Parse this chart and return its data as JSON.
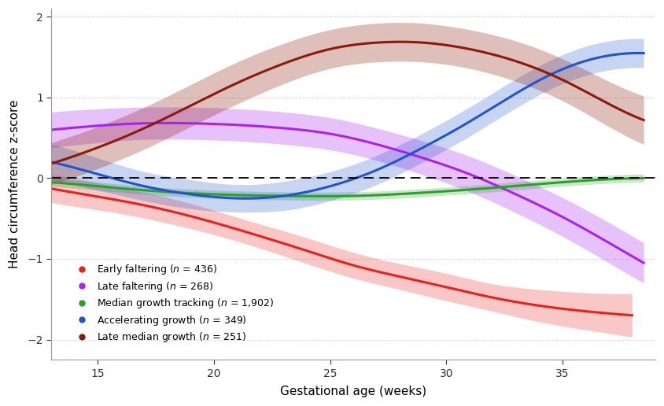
{
  "title": "",
  "xlabel": "Gestational age (weeks)",
  "ylabel": "Head circumference z-score",
  "xlim": [
    13,
    39
  ],
  "ylim": [
    -2.25,
    2.1
  ],
  "xticks": [
    15,
    20,
    25,
    30,
    35
  ],
  "yticks": [
    -2,
    -1,
    0,
    1,
    2
  ],
  "background_color": "#ffffff",
  "grid_color": "#bbbbbb",
  "series": [
    {
      "name": "Early faltering",
      "n": 436,
      "color": "#e8211d",
      "ci_alpha": 0.25,
      "x": [
        13,
        14,
        16,
        18,
        20,
        22,
        24,
        26,
        28,
        30,
        32,
        34,
        36,
        38
      ],
      "y": [
        -0.13,
        -0.18,
        -0.28,
        -0.4,
        -0.55,
        -0.72,
        -0.9,
        -1.08,
        -1.22,
        -1.35,
        -1.48,
        -1.58,
        -1.65,
        -1.7
      ],
      "ci_lower": [
        -0.3,
        -0.35,
        -0.44,
        -0.56,
        -0.7,
        -0.87,
        -1.06,
        -1.24,
        -1.38,
        -1.52,
        -1.65,
        -1.78,
        -1.88,
        -1.97
      ],
      "ci_upper": [
        0.04,
        0.0,
        -0.12,
        -0.24,
        -0.4,
        -0.57,
        -0.74,
        -0.92,
        -1.06,
        -1.18,
        -1.31,
        -1.38,
        -1.42,
        -1.43
      ]
    },
    {
      "name": "Late faltering",
      "n": 268,
      "color": "#aa22ee",
      "ci_alpha": 0.28,
      "x": [
        13,
        15,
        17,
        19,
        21,
        23,
        25,
        27,
        29,
        31,
        33,
        35,
        37,
        38.5
      ],
      "y": [
        0.6,
        0.65,
        0.68,
        0.68,
        0.66,
        0.62,
        0.55,
        0.42,
        0.25,
        0.05,
        -0.2,
        -0.48,
        -0.8,
        -1.05
      ],
      "ci_lower": [
        0.38,
        0.44,
        0.48,
        0.48,
        0.46,
        0.42,
        0.35,
        0.22,
        0.04,
        -0.17,
        -0.43,
        -0.72,
        -1.05,
        -1.3
      ],
      "ci_upper": [
        0.82,
        0.86,
        0.88,
        0.88,
        0.86,
        0.82,
        0.75,
        0.62,
        0.46,
        0.27,
        0.03,
        -0.24,
        -0.55,
        -0.8
      ]
    },
    {
      "name": "Median growth tracking",
      "n": 1902,
      "color": "#2ca02c",
      "ci_alpha": 0.25,
      "x": [
        13,
        15,
        17,
        20,
        23,
        26,
        29,
        32,
        35,
        38.5
      ],
      "y": [
        -0.05,
        -0.1,
        -0.15,
        -0.2,
        -0.22,
        -0.22,
        -0.18,
        -0.12,
        -0.05,
        0.0
      ],
      "ci_lower": [
        -0.1,
        -0.15,
        -0.2,
        -0.25,
        -0.27,
        -0.27,
        -0.23,
        -0.17,
        -0.1,
        -0.05
      ],
      "ci_upper": [
        0.0,
        -0.05,
        -0.1,
        -0.15,
        -0.17,
        -0.17,
        -0.13,
        -0.07,
        0.0,
        0.05
      ]
    },
    {
      "name": "Accelerating growth",
      "n": 349,
      "color": "#2255cc",
      "ci_alpha": 0.25,
      "x": [
        13,
        15,
        17,
        19,
        21,
        23,
        25,
        27,
        29,
        31,
        33,
        35,
        37,
        38.5
      ],
      "y": [
        0.2,
        0.05,
        -0.1,
        -0.2,
        -0.25,
        -0.22,
        -0.1,
        0.1,
        0.38,
        0.7,
        1.05,
        1.35,
        1.52,
        1.55
      ],
      "ci_lower": [
        -0.02,
        -0.15,
        -0.28,
        -0.38,
        -0.42,
        -0.4,
        -0.28,
        -0.08,
        0.2,
        0.52,
        0.87,
        1.17,
        1.34,
        1.37
      ],
      "ci_upper": [
        0.42,
        0.25,
        0.08,
        -0.02,
        -0.08,
        -0.04,
        0.08,
        0.28,
        0.56,
        0.88,
        1.23,
        1.53,
        1.7,
        1.73
      ]
    },
    {
      "name": "Late median growth",
      "n": 251,
      "color": "#8b1a0a",
      "ci_alpha": 0.28,
      "x": [
        13,
        15,
        17,
        19,
        21,
        23,
        25,
        27,
        29,
        31,
        33,
        35,
        37,
        38.5
      ],
      "y": [
        0.18,
        0.38,
        0.62,
        0.9,
        1.18,
        1.42,
        1.6,
        1.68,
        1.68,
        1.6,
        1.45,
        1.22,
        0.92,
        0.72
      ],
      "ci_lower": [
        -0.08,
        0.12,
        0.36,
        0.64,
        0.92,
        1.17,
        1.36,
        1.44,
        1.44,
        1.36,
        1.2,
        0.96,
        0.64,
        0.42
      ],
      "ci_upper": [
        0.44,
        0.64,
        0.88,
        1.16,
        1.44,
        1.67,
        1.84,
        1.92,
        1.92,
        1.84,
        1.7,
        1.48,
        1.2,
        1.02
      ]
    }
  ]
}
